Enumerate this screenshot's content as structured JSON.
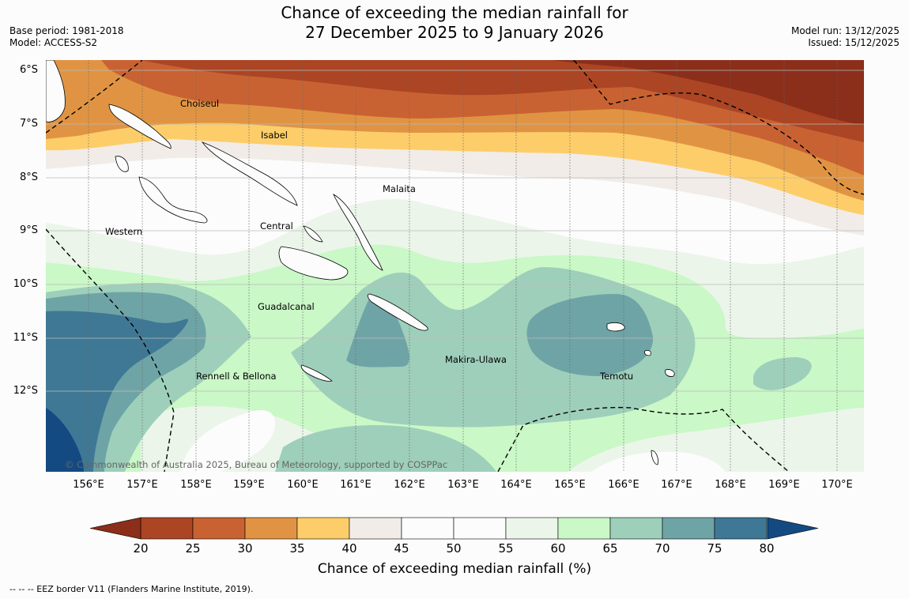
{
  "title": {
    "line1": "Chance of exceeding the median rainfall for",
    "line2": "27 December 2025 to 9 January 2026"
  },
  "meta": {
    "base_period": "Base period: 1981-2018",
    "model": "Model: ACCESS-S2",
    "model_run": "Model run: 13/12/2025",
    "issued": "Issued: 15/12/2025"
  },
  "map": {
    "latitude_labels": [
      "6°S",
      "7°S",
      "8°S",
      "9°S",
      "10°S",
      "11°S",
      "12°S"
    ],
    "longitude_labels": [
      "156°E",
      "157°E",
      "158°E",
      "159°E",
      "160°E",
      "161°E",
      "162°E",
      "163°E",
      "164°E",
      "165°E",
      "166°E",
      "167°E",
      "168°E",
      "169°E",
      "170°E"
    ],
    "regions": [
      "Choiseul",
      "Isabel",
      "Malaita",
      "Western",
      "Central",
      "Guadalcanal",
      "Makira-Ulawa",
      "Rennell & Bellona",
      "Temotu"
    ],
    "copyright": "© Commonwealth of Australia 2025, Bureau of Meteorology, supported by COSPPac",
    "fill_colors": [
      "#8b2e1a",
      "#ab4524",
      "#c96232",
      "#e09443",
      "#fdcd6a",
      "#f1ece8",
      "#fbfcfb",
      "#fbfcfb",
      "#ebf5ea",
      "#caf8c7",
      "#9ecfba",
      "#6fa4a6",
      "#3f7895",
      "#144a82"
    ]
  },
  "colorbar": {
    "ticks": [
      "20",
      "25",
      "30",
      "35",
      "40",
      "45",
      "50",
      "55",
      "60",
      "65",
      "70",
      "75",
      "80"
    ],
    "title": "Chance of exceeding median rainfall (%)"
  },
  "footer": "--  --  -- EEZ border V11 (Flanders Marine Institute, 2019)."
}
